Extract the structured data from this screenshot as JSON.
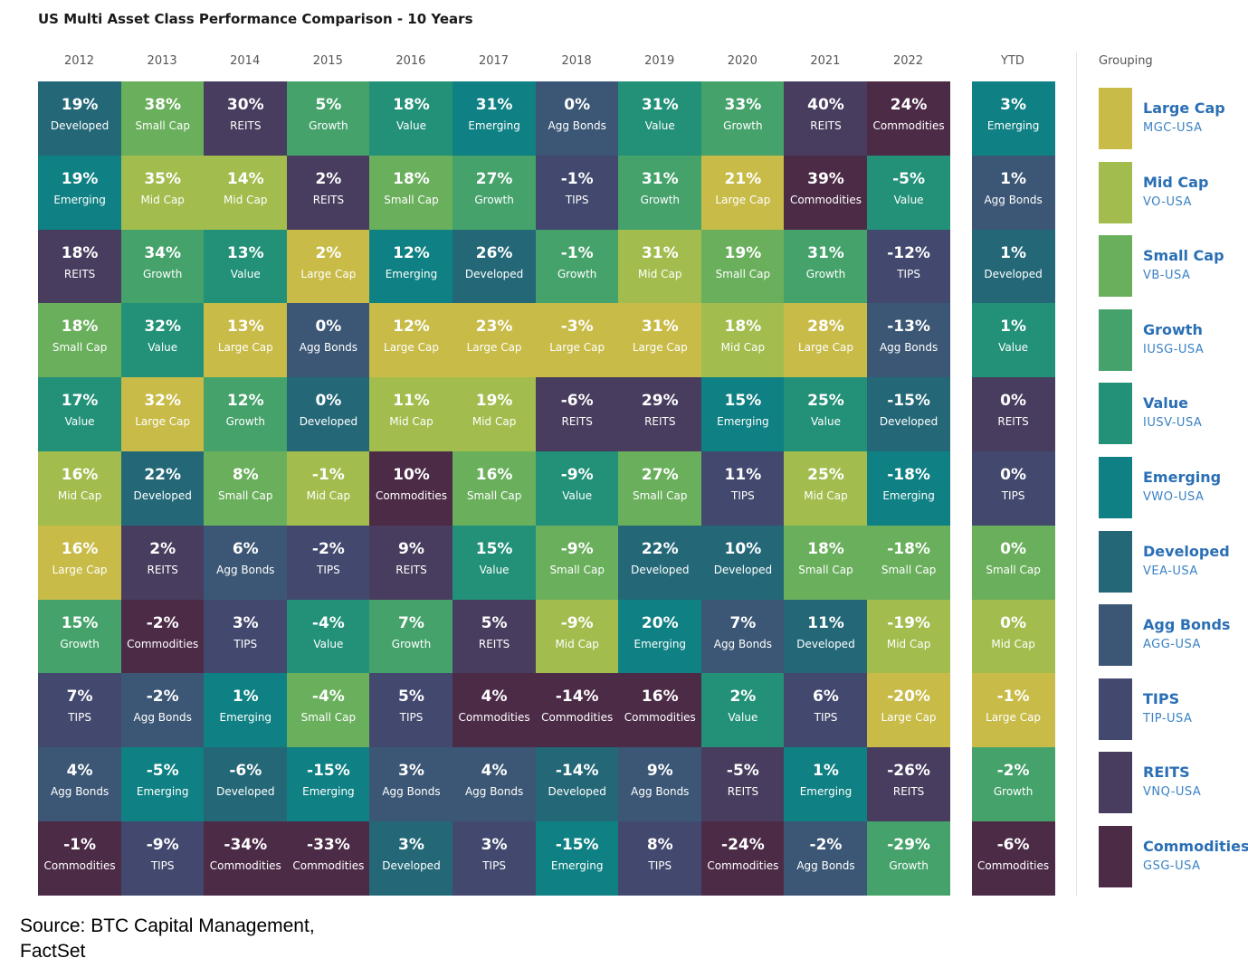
{
  "title": "US Multi Asset Class Performance Comparison - 10 Years",
  "grouping_title": "Grouping",
  "source_lines": [
    "Source:  BTC Capital Management,",
    "FactSet"
  ],
  "colors": {
    "Large Cap": "#c8bb48",
    "Mid Cap": "#a2bd4d",
    "Small Cap": "#6aaf5c",
    "Growth": "#45a26b",
    "Value": "#229178",
    "Emerging": "#0f8083",
    "Developed": "#246878",
    "Agg Bonds": "#3c5775",
    "TIPS": "#43496e",
    "REITS": "#483d5e",
    "Commodities": "#4c2b47"
  },
  "legend": [
    {
      "name": "Large Cap",
      "ticker": "MGC-USA",
      "key": "Large Cap"
    },
    {
      "name": "Mid Cap",
      "ticker": "VO-USA",
      "key": "Mid Cap"
    },
    {
      "name": "Small Cap",
      "ticker": "VB-USA",
      "key": "Small Cap"
    },
    {
      "name": "Growth",
      "ticker": "IUSG-USA",
      "key": "Growth"
    },
    {
      "name": "Value",
      "ticker": "IUSV-USA",
      "key": "Value"
    },
    {
      "name": "Emerging",
      "ticker": "VWO-USA",
      "key": "Emerging"
    },
    {
      "name": "Developed",
      "ticker": "VEA-USA",
      "key": "Developed"
    },
    {
      "name": "Agg Bonds",
      "ticker": "AGG-USA",
      "key": "Agg Bonds"
    },
    {
      "name": "TIPS",
      "ticker": "TIP-USA",
      "key": "TIPS"
    },
    {
      "name": "REITS",
      "ticker": "VNQ-USA",
      "key": "REITS"
    },
    {
      "name": "Commodities",
      "ticker": "GSG-USA",
      "key": "Commodities"
    }
  ],
  "chart_data": {
    "type": "table",
    "columns": [
      {
        "header": "2012",
        "cells": [
          {
            "value": "19%",
            "label": "Developed",
            "key": "Developed"
          },
          {
            "value": "19%",
            "label": "Emerging",
            "key": "Emerging"
          },
          {
            "value": "18%",
            "label": "REITS",
            "key": "REITS"
          },
          {
            "value": "18%",
            "label": "Small Cap",
            "key": "Small Cap"
          },
          {
            "value": "17%",
            "label": "Value",
            "key": "Value"
          },
          {
            "value": "16%",
            "label": "Mid Cap",
            "key": "Mid Cap"
          },
          {
            "value": "16%",
            "label": "Large Cap",
            "key": "Large Cap"
          },
          {
            "value": "15%",
            "label": "Growth",
            "key": "Growth"
          },
          {
            "value": "7%",
            "label": "TIPS",
            "key": "TIPS"
          },
          {
            "value": "4%",
            "label": "Agg Bonds",
            "key": "Agg Bonds"
          },
          {
            "value": "-1%",
            "label": "Commodities",
            "key": "Commodities"
          }
        ]
      },
      {
        "header": "2013",
        "cells": [
          {
            "value": "38%",
            "label": "Small Cap",
            "key": "Small Cap"
          },
          {
            "value": "35%",
            "label": "Mid Cap",
            "key": "Mid Cap"
          },
          {
            "value": "34%",
            "label": "Growth",
            "key": "Growth"
          },
          {
            "value": "32%",
            "label": "Value",
            "key": "Value"
          },
          {
            "value": "32%",
            "label": "Large Cap",
            "key": "Large Cap"
          },
          {
            "value": "22%",
            "label": "Developed",
            "key": "Developed"
          },
          {
            "value": "2%",
            "label": "REITS",
            "key": "REITS"
          },
          {
            "value": "-2%",
            "label": "Commodities",
            "key": "Commodities"
          },
          {
            "value": "-2%",
            "label": "Agg Bonds",
            "key": "Agg Bonds"
          },
          {
            "value": "-5%",
            "label": "Emerging",
            "key": "Emerging"
          },
          {
            "value": "-9%",
            "label": "TIPS",
            "key": "TIPS"
          }
        ]
      },
      {
        "header": "2014",
        "cells": [
          {
            "value": "30%",
            "label": "REITS",
            "key": "REITS"
          },
          {
            "value": "14%",
            "label": "Mid Cap",
            "key": "Mid Cap"
          },
          {
            "value": "13%",
            "label": "Value",
            "key": "Value"
          },
          {
            "value": "13%",
            "label": "Large Cap",
            "key": "Large Cap"
          },
          {
            "value": "12%",
            "label": "Growth",
            "key": "Growth"
          },
          {
            "value": "8%",
            "label": "Small Cap",
            "key": "Small Cap"
          },
          {
            "value": "6%",
            "label": "Agg Bonds",
            "key": "Agg Bonds"
          },
          {
            "value": "3%",
            "label": "TIPS",
            "key": "TIPS"
          },
          {
            "value": "1%",
            "label": "Emerging",
            "key": "Emerging"
          },
          {
            "value": "-6%",
            "label": "Developed",
            "key": "Developed"
          },
          {
            "value": "-34%",
            "label": "Commodities",
            "key": "Commodities"
          }
        ]
      },
      {
        "header": "2015",
        "cells": [
          {
            "value": "5%",
            "label": "Growth",
            "key": "Growth"
          },
          {
            "value": "2%",
            "label": "REITS",
            "key": "REITS"
          },
          {
            "value": "2%",
            "label": "Large Cap",
            "key": "Large Cap"
          },
          {
            "value": "0%",
            "label": "Agg Bonds",
            "key": "Agg Bonds"
          },
          {
            "value": "0%",
            "label": "Developed",
            "key": "Developed"
          },
          {
            "value": "-1%",
            "label": "Mid Cap",
            "key": "Mid Cap"
          },
          {
            "value": "-2%",
            "label": "TIPS",
            "key": "TIPS"
          },
          {
            "value": "-4%",
            "label": "Value",
            "key": "Value"
          },
          {
            "value": "-4%",
            "label": "Small Cap",
            "key": "Small Cap"
          },
          {
            "value": "-15%",
            "label": "Emerging",
            "key": "Emerging"
          },
          {
            "value": "-33%",
            "label": "Commodities",
            "key": "Commodities"
          }
        ]
      },
      {
        "header": "2016",
        "cells": [
          {
            "value": "18%",
            "label": "Value",
            "key": "Value"
          },
          {
            "value": "18%",
            "label": "Small Cap",
            "key": "Small Cap"
          },
          {
            "value": "12%",
            "label": "Emerging",
            "key": "Emerging"
          },
          {
            "value": "12%",
            "label": "Large Cap",
            "key": "Large Cap"
          },
          {
            "value": "11%",
            "label": "Mid Cap",
            "key": "Mid Cap"
          },
          {
            "value": "10%",
            "label": "Commodities",
            "key": "Commodities"
          },
          {
            "value": "9%",
            "label": "REITS",
            "key": "REITS"
          },
          {
            "value": "7%",
            "label": "Growth",
            "key": "Growth"
          },
          {
            "value": "5%",
            "label": "TIPS",
            "key": "TIPS"
          },
          {
            "value": "3%",
            "label": "Agg Bonds",
            "key": "Agg Bonds"
          },
          {
            "value": "3%",
            "label": "Developed",
            "key": "Developed"
          }
        ]
      },
      {
        "header": "2017",
        "cells": [
          {
            "value": "31%",
            "label": "Emerging",
            "key": "Emerging"
          },
          {
            "value": "27%",
            "label": "Growth",
            "key": "Growth"
          },
          {
            "value": "26%",
            "label": "Developed",
            "key": "Developed"
          },
          {
            "value": "23%",
            "label": "Large Cap",
            "key": "Large Cap"
          },
          {
            "value": "19%",
            "label": "Mid Cap",
            "key": "Mid Cap"
          },
          {
            "value": "16%",
            "label": "Small Cap",
            "key": "Small Cap"
          },
          {
            "value": "15%",
            "label": "Value",
            "key": "Value"
          },
          {
            "value": "5%",
            "label": "REITS",
            "key": "REITS"
          },
          {
            "value": "4%",
            "label": "Commodities",
            "key": "Commodities"
          },
          {
            "value": "4%",
            "label": "Agg Bonds",
            "key": "Agg Bonds"
          },
          {
            "value": "3%",
            "label": "TIPS",
            "key": "TIPS"
          }
        ]
      },
      {
        "header": "2018",
        "cells": [
          {
            "value": "0%",
            "label": "Agg Bonds",
            "key": "Agg Bonds"
          },
          {
            "value": "-1%",
            "label": "TIPS",
            "key": "TIPS"
          },
          {
            "value": "-1%",
            "label": "Growth",
            "key": "Growth"
          },
          {
            "value": "-3%",
            "label": "Large Cap",
            "key": "Large Cap"
          },
          {
            "value": "-6%",
            "label": "REITS",
            "key": "REITS"
          },
          {
            "value": "-9%",
            "label": "Value",
            "key": "Value"
          },
          {
            "value": "-9%",
            "label": "Small Cap",
            "key": "Small Cap"
          },
          {
            "value": "-9%",
            "label": "Mid Cap",
            "key": "Mid Cap"
          },
          {
            "value": "-14%",
            "label": "Commodities",
            "key": "Commodities"
          },
          {
            "value": "-14%",
            "label": "Developed",
            "key": "Developed"
          },
          {
            "value": "-15%",
            "label": "Emerging",
            "key": "Emerging"
          }
        ]
      },
      {
        "header": "2019",
        "cells": [
          {
            "value": "31%",
            "label": "Value",
            "key": "Value"
          },
          {
            "value": "31%",
            "label": "Growth",
            "key": "Growth"
          },
          {
            "value": "31%",
            "label": "Mid Cap",
            "key": "Mid Cap"
          },
          {
            "value": "31%",
            "label": "Large Cap",
            "key": "Large Cap"
          },
          {
            "value": "29%",
            "label": "REITS",
            "key": "REITS"
          },
          {
            "value": "27%",
            "label": "Small Cap",
            "key": "Small Cap"
          },
          {
            "value": "22%",
            "label": "Developed",
            "key": "Developed"
          },
          {
            "value": "20%",
            "label": "Emerging",
            "key": "Emerging"
          },
          {
            "value": "16%",
            "label": "Commodities",
            "key": "Commodities"
          },
          {
            "value": "9%",
            "label": "Agg Bonds",
            "key": "Agg Bonds"
          },
          {
            "value": "8%",
            "label": "TIPS",
            "key": "TIPS"
          }
        ]
      },
      {
        "header": "2020",
        "cells": [
          {
            "value": "33%",
            "label": "Growth",
            "key": "Growth"
          },
          {
            "value": "21%",
            "label": "Large Cap",
            "key": "Large Cap"
          },
          {
            "value": "19%",
            "label": "Small Cap",
            "key": "Small Cap"
          },
          {
            "value": "18%",
            "label": "Mid Cap",
            "key": "Mid Cap"
          },
          {
            "value": "15%",
            "label": "Emerging",
            "key": "Emerging"
          },
          {
            "value": "11%",
            "label": "TIPS",
            "key": "TIPS"
          },
          {
            "value": "10%",
            "label": "Developed",
            "key": "Developed"
          },
          {
            "value": "7%",
            "label": "Agg Bonds",
            "key": "Agg Bonds"
          },
          {
            "value": "2%",
            "label": "Value",
            "key": "Value"
          },
          {
            "value": "-5%",
            "label": "REITS",
            "key": "REITS"
          },
          {
            "value": "-24%",
            "label": "Commodities",
            "key": "Commodities"
          }
        ]
      },
      {
        "header": "2021",
        "cells": [
          {
            "value": "40%",
            "label": "REITS",
            "key": "REITS"
          },
          {
            "value": "39%",
            "label": "Commodities",
            "key": "Commodities"
          },
          {
            "value": "31%",
            "label": "Growth",
            "key": "Growth"
          },
          {
            "value": "28%",
            "label": "Large Cap",
            "key": "Large Cap"
          },
          {
            "value": "25%",
            "label": "Value",
            "key": "Value"
          },
          {
            "value": "25%",
            "label": "Mid Cap",
            "key": "Mid Cap"
          },
          {
            "value": "18%",
            "label": "Small Cap",
            "key": "Small Cap"
          },
          {
            "value": "11%",
            "label": "Developed",
            "key": "Developed"
          },
          {
            "value": "6%",
            "label": "TIPS",
            "key": "TIPS"
          },
          {
            "value": "1%",
            "label": "Emerging",
            "key": "Emerging"
          },
          {
            "value": "-2%",
            "label": "Agg Bonds",
            "key": "Agg Bonds"
          }
        ]
      },
      {
        "header": "2022",
        "cells": [
          {
            "value": "24%",
            "label": "Commodities",
            "key": "Commodities"
          },
          {
            "value": "-5%",
            "label": "Value",
            "key": "Value"
          },
          {
            "value": "-12%",
            "label": "TIPS",
            "key": "TIPS"
          },
          {
            "value": "-13%",
            "label": "Agg Bonds",
            "key": "Agg Bonds"
          },
          {
            "value": "-15%",
            "label": "Developed",
            "key": "Developed"
          },
          {
            "value": "-18%",
            "label": "Emerging",
            "key": "Emerging"
          },
          {
            "value": "-18%",
            "label": "Small Cap",
            "key": "Small Cap"
          },
          {
            "value": "-19%",
            "label": "Mid Cap",
            "key": "Mid Cap"
          },
          {
            "value": "-20%",
            "label": "Large Cap",
            "key": "Large Cap"
          },
          {
            "value": "-26%",
            "label": "REITS",
            "key": "REITS"
          },
          {
            "value": "-29%",
            "label": "Growth",
            "key": "Growth"
          }
        ]
      },
      {
        "header": "YTD",
        "cells": [
          {
            "value": "3%",
            "label": "Emerging",
            "key": "Emerging"
          },
          {
            "value": "1%",
            "label": "Agg Bonds",
            "key": "Agg Bonds"
          },
          {
            "value": "1%",
            "label": "Developed",
            "key": "Developed"
          },
          {
            "value": "1%",
            "label": "Value",
            "key": "Value"
          },
          {
            "value": "0%",
            "label": "REITS",
            "key": "REITS"
          },
          {
            "value": "0%",
            "label": "TIPS",
            "key": "TIPS"
          },
          {
            "value": "0%",
            "label": "Small Cap",
            "key": "Small Cap"
          },
          {
            "value": "0%",
            "label": "Mid Cap",
            "key": "Mid Cap"
          },
          {
            "value": "-1%",
            "label": "Large Cap",
            "key": "Large Cap"
          },
          {
            "value": "-2%",
            "label": "Growth",
            "key": "Growth"
          },
          {
            "value": "-6%",
            "label": "Commodities",
            "key": "Commodities"
          }
        ]
      }
    ]
  }
}
